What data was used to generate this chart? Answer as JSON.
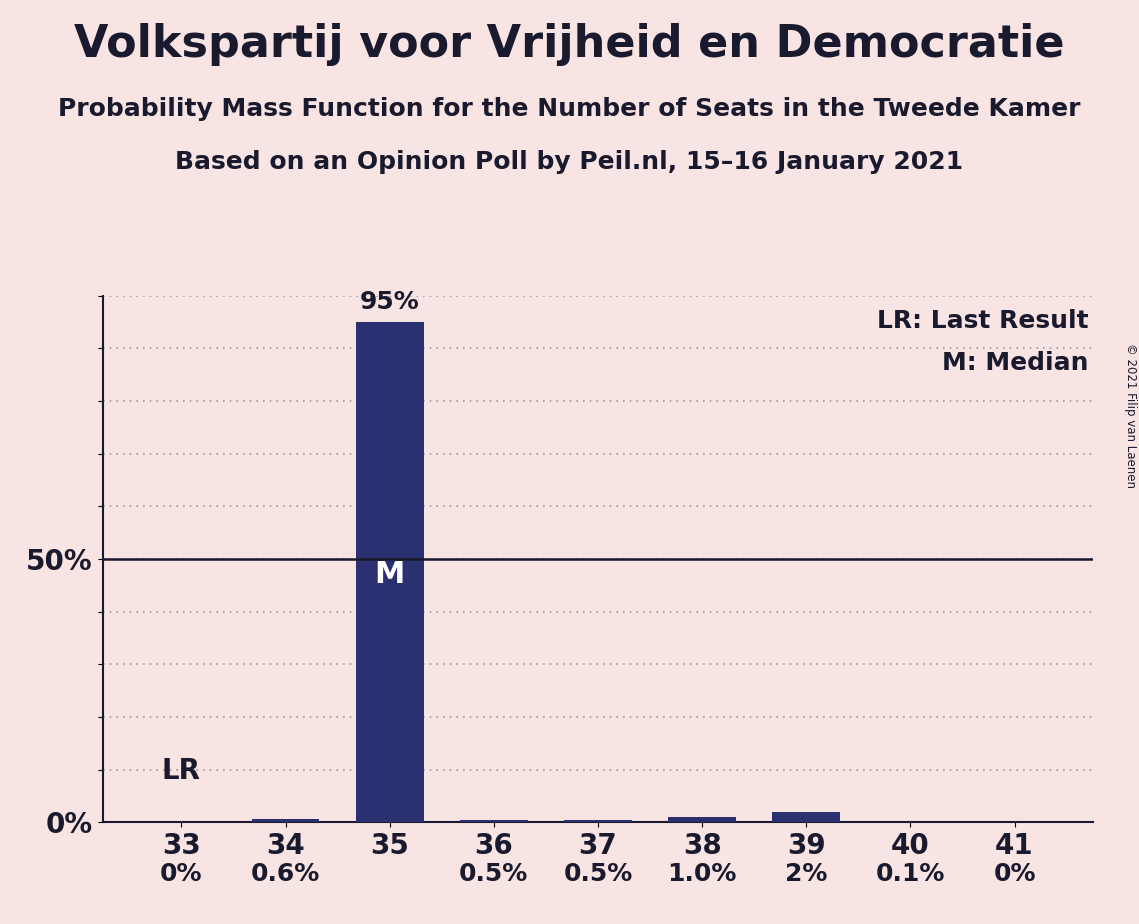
{
  "title": "Volkspartij voor Vrijheid en Democratie",
  "subtitle1": "Probability Mass Function for the Number of Seats in the Tweede Kamer",
  "subtitle2": "Based on an Opinion Poll by Peil.nl, 15–16 January 2021",
  "copyright": "© 2021 Filip van Laenen",
  "categories": [
    33,
    34,
    35,
    36,
    37,
    38,
    39,
    40,
    41
  ],
  "values": [
    0.0,
    0.6,
    95.0,
    0.5,
    0.5,
    1.0,
    2.0,
    0.1,
    0.0
  ],
  "bar_labels": [
    "0%",
    "0.6%",
    "95%",
    "0.5%",
    "0.5%",
    "1.0%",
    "2%",
    "0.1%",
    "0%"
  ],
  "bar_color": "#2b3071",
  "background_color": "#f9e4e4",
  "text_color": "#1a1a2e",
  "median_seat": 35,
  "lr_seat": 33,
  "median_label": "M",
  "lr_label": "LR",
  "legend_lr": "LR: Last Result",
  "legend_m": "M: Median",
  "ylim": [
    0,
    100
  ],
  "yticks": [
    0,
    10,
    20,
    30,
    40,
    50,
    60,
    70,
    80,
    90,
    100
  ],
  "ytick_labels_show": [
    0,
    50
  ],
  "title_fontsize": 32,
  "subtitle_fontsize": 18,
  "bar_label_fontsize": 18,
  "tick_fontsize": 20,
  "legend_fontsize": 18,
  "annotation_fontsize": 20,
  "lr_annotation_fontsize": 20
}
